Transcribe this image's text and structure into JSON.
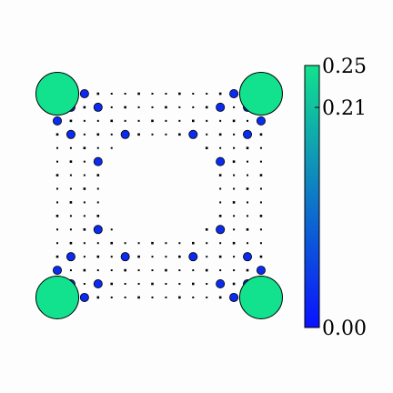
{
  "chart_data": {
    "type": "scatter",
    "title": "",
    "xlabel": "",
    "ylabel": "",
    "grid": false,
    "n": 16,
    "xlim": [
      0,
      15
    ],
    "ylim": [
      0,
      15
    ],
    "colorbar": {
      "min": 0.0,
      "max": 0.25,
      "ticks": [
        0.0,
        0.21,
        0.25
      ],
      "tick_labels": [
        "0.00",
        "0.21",
        "0.25"
      ],
      "color_low": "#0a12ff",
      "color_high": "#12e28e"
    },
    "hub_value": 0.25,
    "ring_value": 0.03,
    "corner_hubs": [
      [
        0,
        0
      ],
      [
        15,
        0
      ],
      [
        0,
        15
      ],
      [
        15,
        15
      ]
    ],
    "ring_sites": [
      [
        2,
        0
      ],
      [
        1,
        1
      ],
      [
        3,
        1
      ],
      [
        1,
        3
      ],
      [
        0,
        2
      ],
      [
        13,
        0
      ],
      [
        14,
        1
      ],
      [
        12,
        1
      ],
      [
        14,
        3
      ],
      [
        15,
        2
      ],
      [
        0,
        13
      ],
      [
        1,
        14
      ],
      [
        1,
        12
      ],
      [
        3,
        14
      ],
      [
        2,
        15
      ],
      [
        15,
        13
      ],
      [
        14,
        14
      ],
      [
        14,
        12
      ],
      [
        12,
        14
      ],
      [
        13,
        15
      ],
      [
        5,
        3
      ],
      [
        10,
        3
      ],
      [
        3,
        5
      ],
      [
        12,
        5
      ],
      [
        3,
        10
      ],
      [
        12,
        10
      ],
      [
        5,
        12
      ],
      [
        10,
        12
      ]
    ],
    "empty_blocks": [
      [
        5,
        10,
        4,
        10
      ],
      [
        4,
        11,
        5,
        9
      ]
    ]
  }
}
